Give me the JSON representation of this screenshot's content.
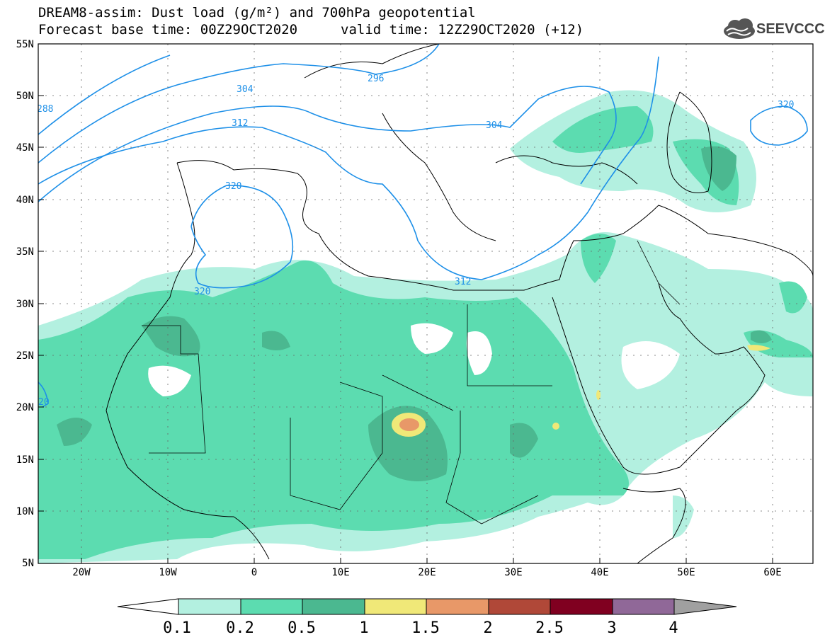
{
  "header": {
    "title_line1": "DREAM8-assim: Dust load (g/m²) and 700hPa geopotential",
    "title_line2": "Forecast base time: 00Z29OCT2020",
    "valid_time": "valid time: 12Z29OCT2020 (+12)",
    "logo_text": "SEEVCCC"
  },
  "map": {
    "lat_labels": [
      "55N",
      "50N",
      "45N",
      "40N",
      "35N",
      "30N",
      "25N",
      "20N",
      "15N",
      "10N",
      "5N"
    ],
    "lon_labels": [
      "20W",
      "10W",
      "0",
      "10E",
      "20E",
      "30E",
      "40E",
      "50E",
      "60E"
    ],
    "contour_labels": [
      "288",
      "296",
      "304",
      "304",
      "312",
      "312",
      "320",
      "320",
      "320",
      "20"
    ],
    "colors": {
      "dust_01": "#b3f0e0",
      "dust_02": "#5cdcb0",
      "dust_05": "#4bb890",
      "dust_1": "#f0e878",
      "dust_15": "#e89868",
      "contour": "#1e90e8"
    }
  },
  "colorbar": {
    "tick_labels": [
      "0.1",
      "0.2",
      "0.5",
      "1",
      "1.5",
      "2",
      "2.5",
      "3",
      "4"
    ],
    "colors": [
      "#b3f0e0",
      "#5cdcb0",
      "#4bb890",
      "#f0e878",
      "#e89868",
      "#b04838",
      "#800020",
      "#906898"
    ]
  }
}
